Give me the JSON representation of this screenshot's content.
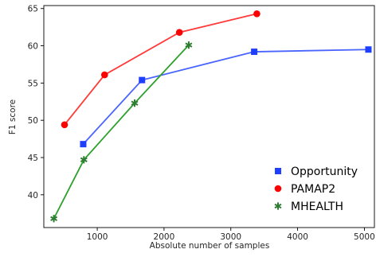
{
  "chart_data": {
    "type": "line",
    "xlabel": "Absolute number of samples",
    "ylabel": "F1 score",
    "xlim": [
      200,
      5150
    ],
    "ylim": [
      35.6,
      65.4
    ],
    "xticks": [
      1000,
      2000,
      3000,
      4000,
      5000
    ],
    "yticks": [
      40,
      45,
      50,
      55,
      60,
      65
    ],
    "grid": false,
    "legend_position": "bottom-right",
    "series": [
      {
        "name": "Opportunity",
        "color": "#1f3fff",
        "line_color": "#4a64ff",
        "marker": "square",
        "x": [
          790,
          1670,
          3350,
          5060
        ],
        "y": [
          46.8,
          55.4,
          59.2,
          59.5
        ]
      },
      {
        "name": "PAMAP2",
        "color": "#ff0000",
        "line_color": "#ff3a3a",
        "marker": "circle",
        "x": [
          510,
          1110,
          2230,
          3390
        ],
        "y": [
          49.4,
          56.1,
          61.8,
          64.3
        ]
      },
      {
        "name": "MHEALTH",
        "color": "#2e7d32",
        "line_color": "#2ea02e",
        "marker": "star",
        "x": [
          350,
          800,
          1560,
          2370
        ],
        "y": [
          36.8,
          44.7,
          52.3,
          60.1
        ]
      }
    ]
  }
}
